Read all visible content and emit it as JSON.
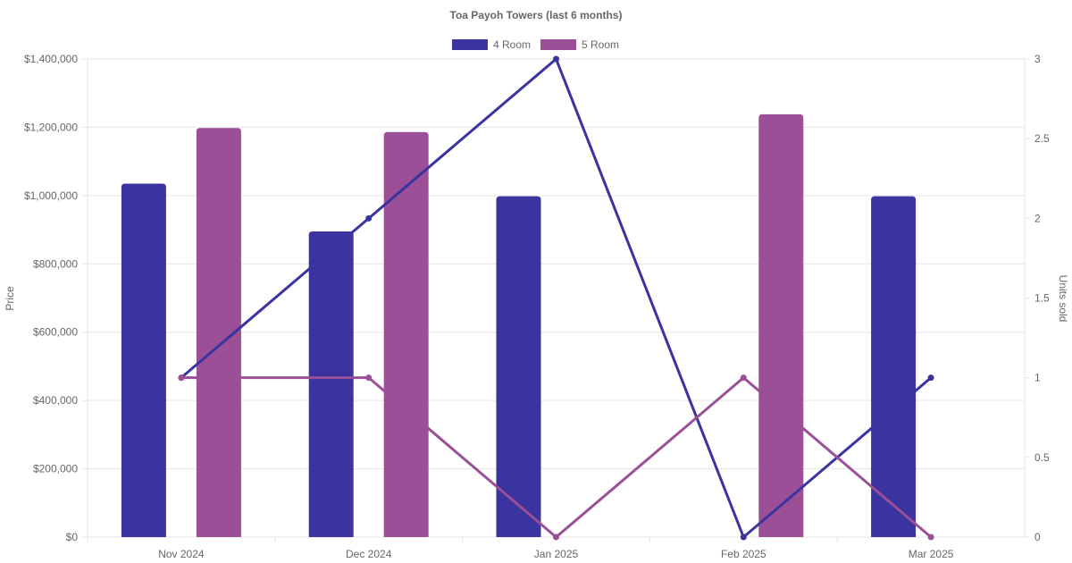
{
  "chart_data": {
    "type": "bar",
    "title": "Toa Payoh Towers (last 6 months)",
    "categories": [
      "Nov 2024",
      "Dec 2024",
      "Jan 2025",
      "Feb 2025",
      "Mar 2025"
    ],
    "series": [
      {
        "name": "4 Room",
        "color": "#3a33a0",
        "values": [
          1035000,
          895000,
          998000,
          null,
          998000
        ],
        "units_sold": [
          1,
          2,
          3,
          0,
          1
        ]
      },
      {
        "name": "5 Room",
        "color": "#9b4f96",
        "values": [
          1198000,
          1186000,
          null,
          1238000,
          null
        ],
        "units_sold": [
          1,
          1,
          0,
          1,
          0
        ]
      }
    ],
    "y_left": {
      "label": "Price",
      "range": [
        0,
        1400000
      ],
      "ticks": [
        "$0",
        "$200,000",
        "$400,000",
        "$600,000",
        "$800,000",
        "$1,000,000",
        "$1,200,000",
        "$1,400,000"
      ]
    },
    "y_right": {
      "label": "Units sold",
      "range": [
        0,
        3
      ],
      "ticks": [
        "0",
        "0.5",
        "1",
        "1.5",
        "2",
        "2.5",
        "3"
      ]
    },
    "grid": true,
    "legend": "top-center"
  }
}
